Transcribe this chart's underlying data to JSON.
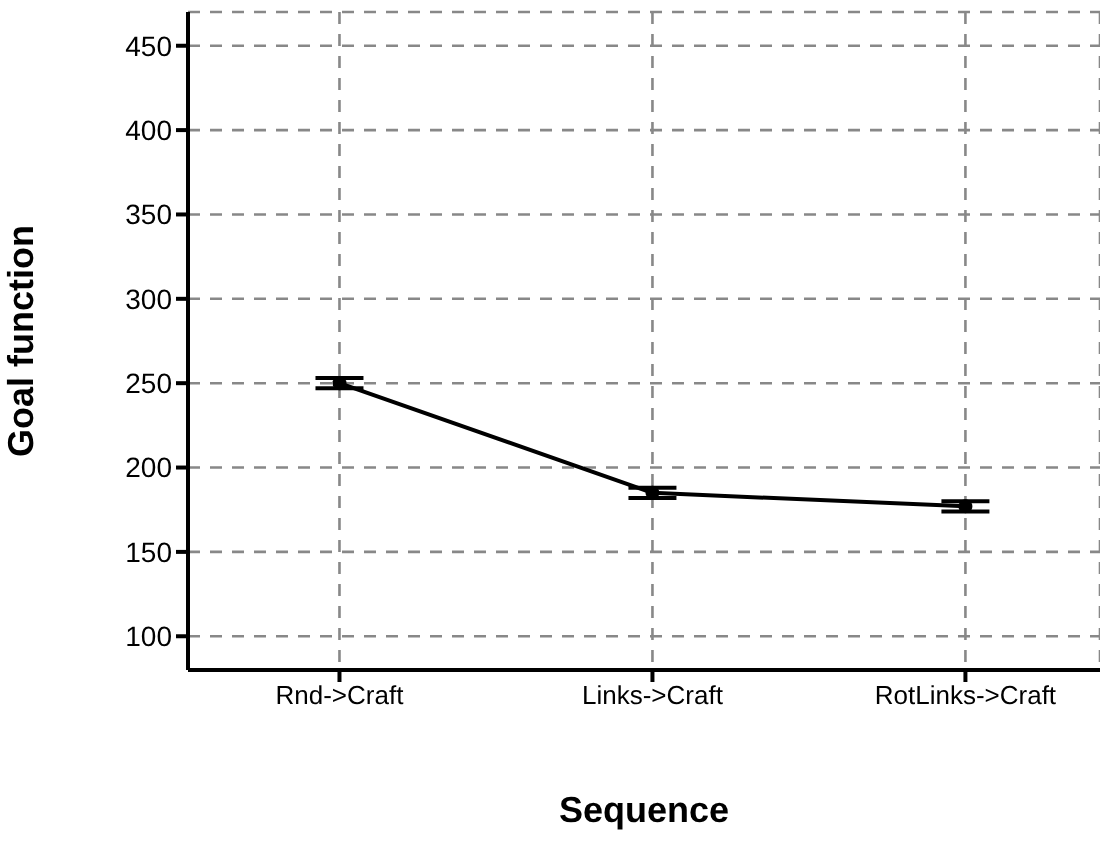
{
  "chart_data": {
    "type": "line",
    "xlabel": "Sequence",
    "ylabel": "Goal function",
    "categories": [
      "Rnd->Craft",
      "Links->Craft",
      "RotLinks->Craft"
    ],
    "series": [
      {
        "color": "#000000",
        "values": [
          250,
          185,
          177
        ],
        "errors": [
          3,
          3,
          3
        ]
      }
    ],
    "ylim": [
      80,
      470
    ],
    "yticks": [
      100,
      150,
      200,
      250,
      300,
      350,
      400,
      450
    ],
    "grid": true,
    "marker": "circle",
    "line_style": "solid"
  }
}
